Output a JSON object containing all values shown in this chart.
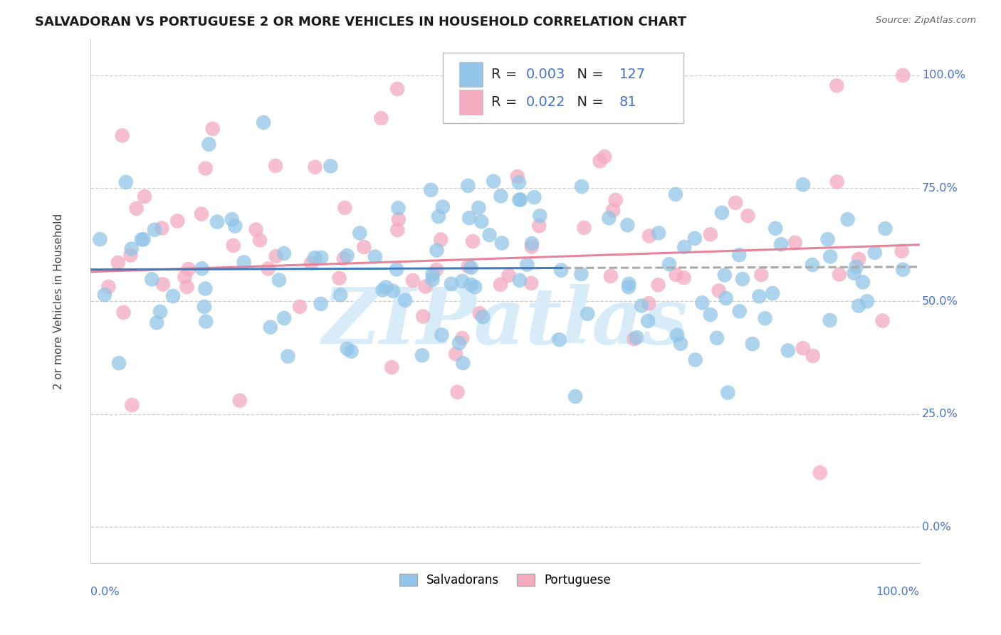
{
  "title": "SALVADORAN VS PORTUGUESE 2 OR MORE VEHICLES IN HOUSEHOLD CORRELATION CHART",
  "source": "Source: ZipAtlas.com",
  "ylabel": "2 or more Vehicles in Household",
  "legend_label1": "Salvadorans",
  "legend_label2": "Portuguese",
  "R1": "0.003",
  "N1": "127",
  "R2": "0.022",
  "N2": "81",
  "color_blue": "#92C5E8",
  "color_pink": "#F4AABF",
  "color_blue_dark": "#3E7BBF",
  "color_pink_dark": "#E8849A",
  "color_blue_text": "#4472C4",
  "watermark": "ZIPatlas",
  "watermark_color": "#D8EBF8",
  "title_fontsize": 13,
  "xlim": [
    0,
    100
  ],
  "ylim": [
    -8,
    108
  ],
  "yticks": [
    0,
    25,
    50,
    75,
    100
  ],
  "ytick_labels": [
    "0.0%",
    "25.0%",
    "50.0%",
    "75.0%",
    "100.0%"
  ],
  "blue_line_x": [
    0,
    100
  ],
  "blue_line_y": [
    57.0,
    57.6
  ],
  "blue_solid_end": 57,
  "pink_line_x": [
    0,
    100
  ],
  "pink_line_y": [
    56.5,
    62.5
  ],
  "dashed_start_x": 57,
  "dashed_y_at_break": 57.3
}
